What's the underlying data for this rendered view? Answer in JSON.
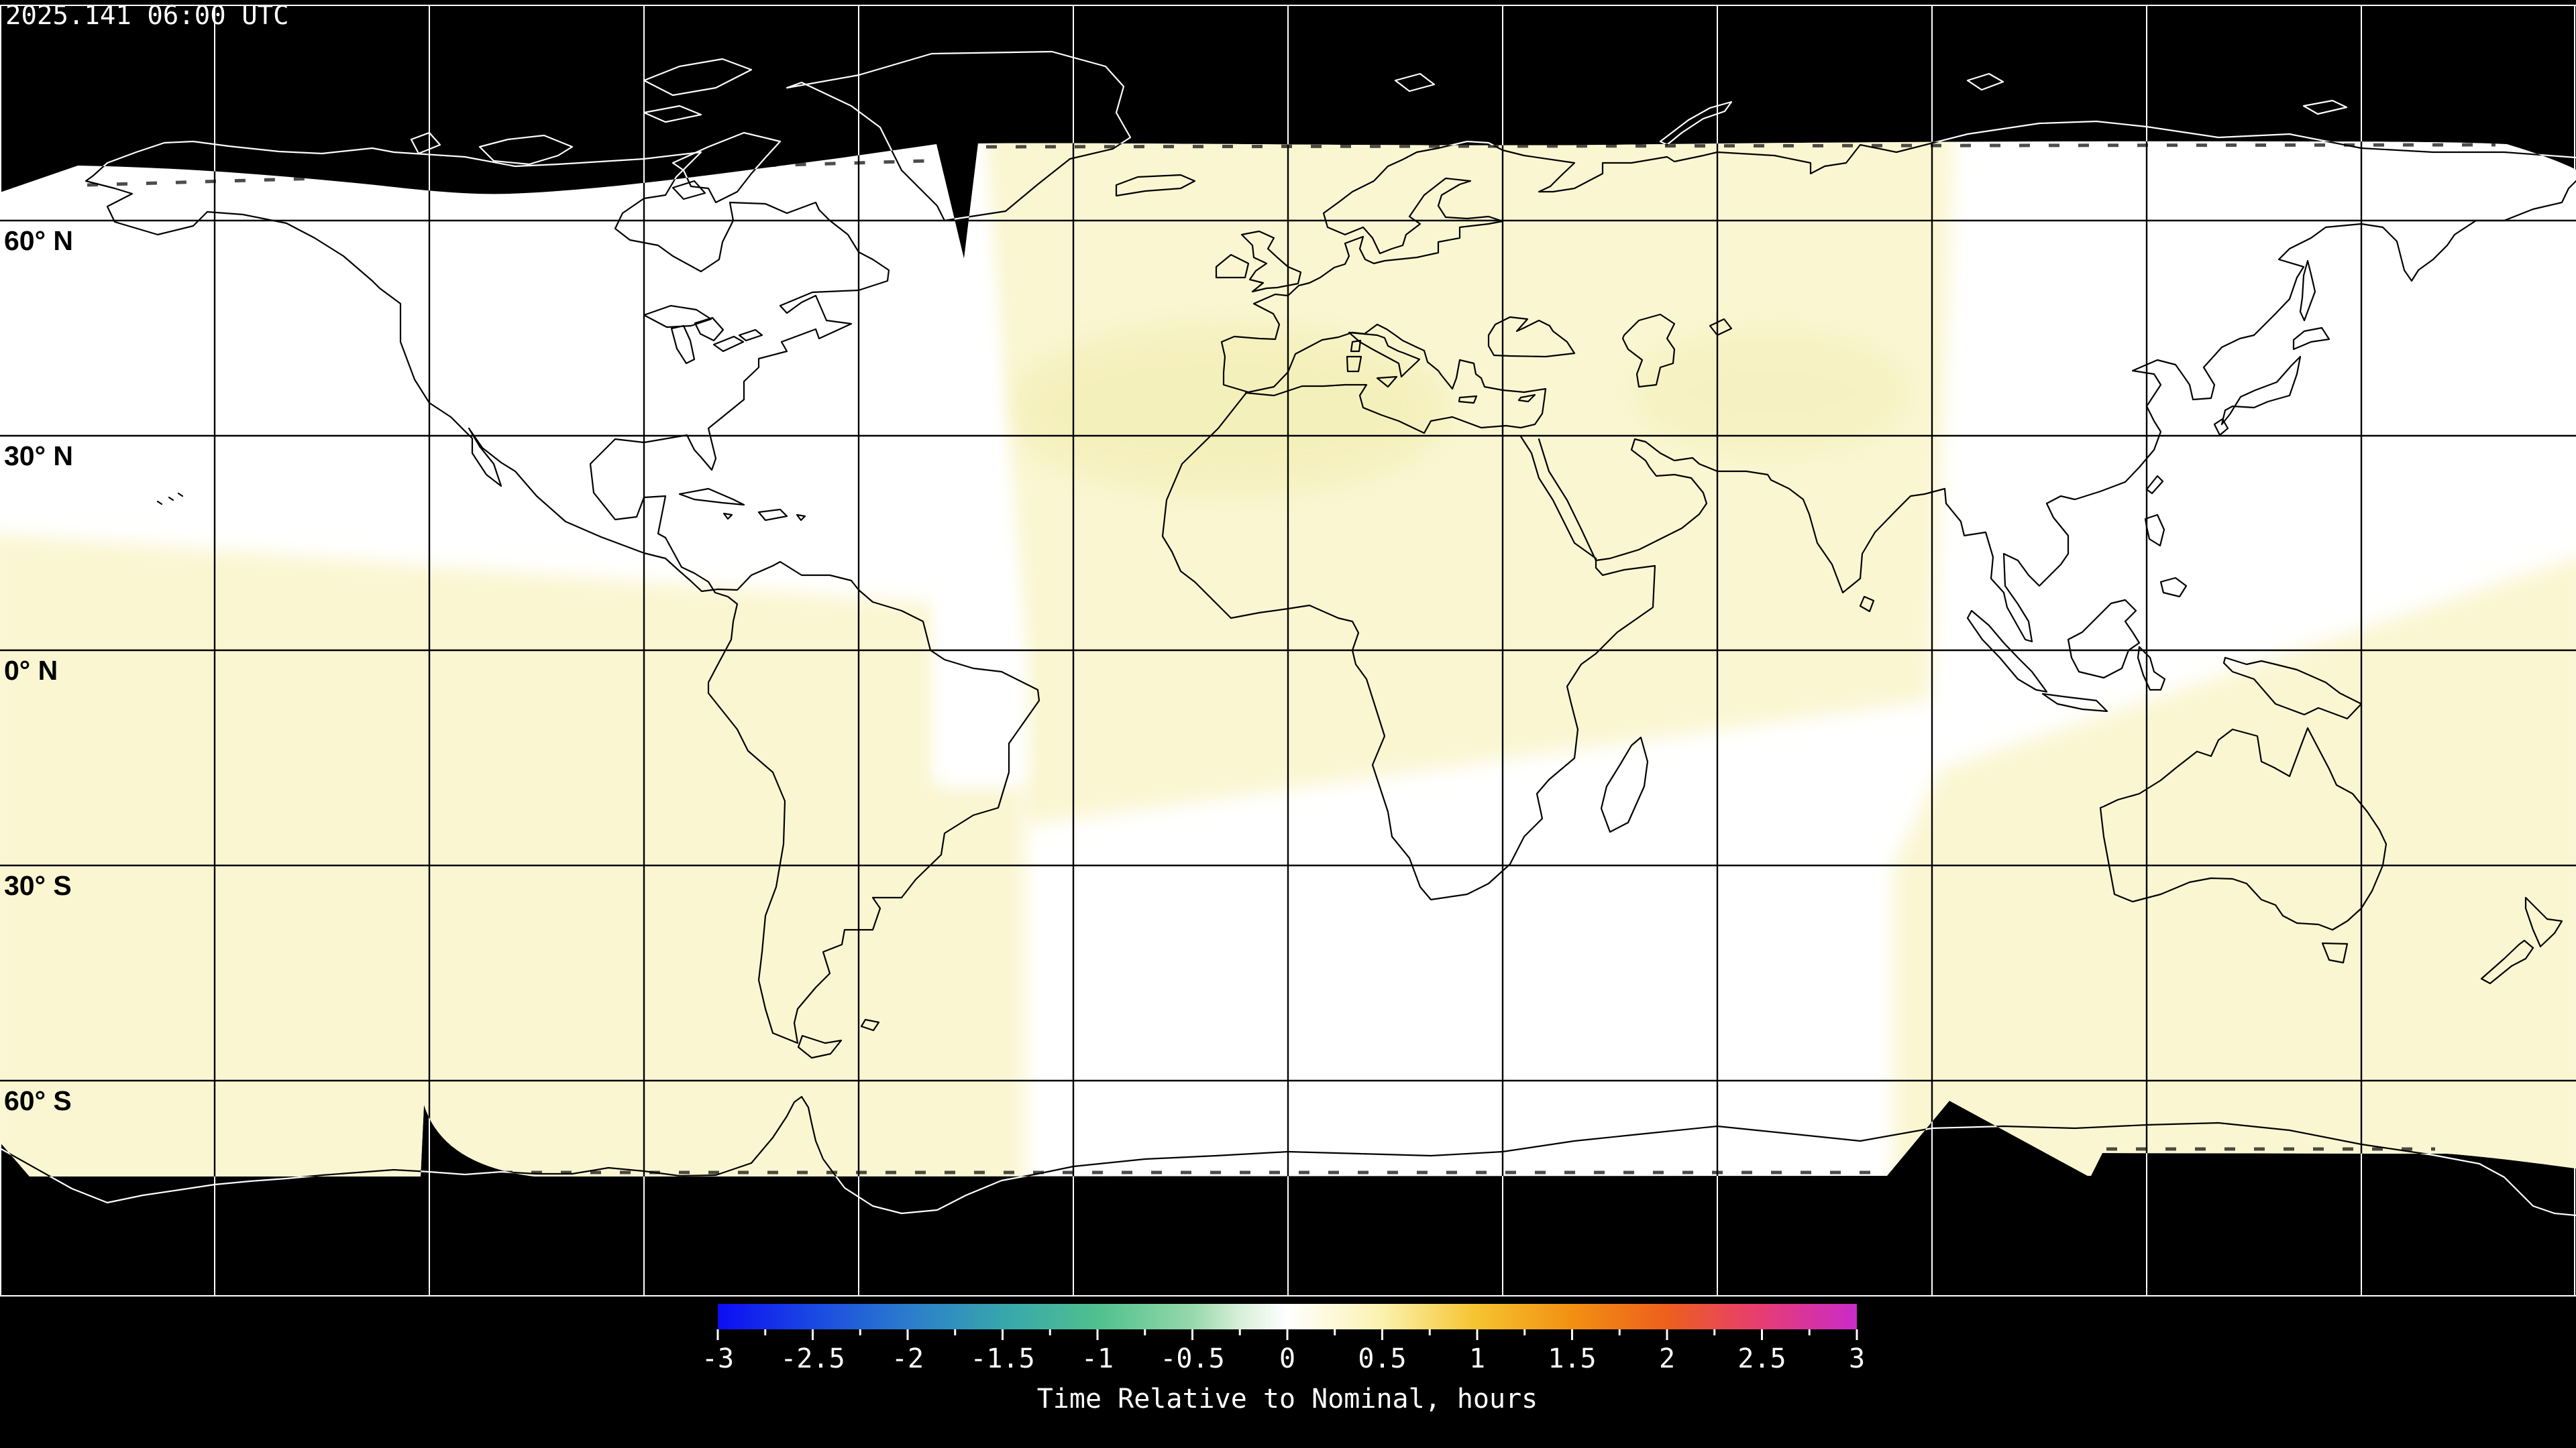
{
  "header": {
    "timestamp": "2025.141 06:00 UTC"
  },
  "map": {
    "latitude_labels": [
      "60° N",
      "30° N",
      "0° N",
      "30° S",
      "60° S"
    ],
    "grid_lon_step_deg": 30,
    "grid_lat_step_deg": 30,
    "background_color": "#000000",
    "nominal_region_color": "#ffffff",
    "late_region_color": "#faf6d2",
    "later_patch_color": "#f3eeb4",
    "coastline_on_data_color": "#000000",
    "coastline_on_void_color": "#ffffff"
  },
  "colorbar": {
    "label": "Time Relative to Nominal, hours",
    "min_hours": -3,
    "max_hours": 3,
    "minor_tick_step": 0.25,
    "major_tick_step": 0.5,
    "tick_labels": [
      "-3",
      "-2.5",
      "-2",
      "-1.5",
      "-1",
      "-0.5",
      "0",
      "0.5",
      "1",
      "1.5",
      "2",
      "2.5",
      "3"
    ],
    "gradient_stops": [
      {
        "value": -3,
        "color": "#0d0df4"
      },
      {
        "value": -2.5,
        "color": "#1a48e2"
      },
      {
        "value": -2,
        "color": "#2b7ccc"
      },
      {
        "value": -1.5,
        "color": "#37a6ad"
      },
      {
        "value": -1,
        "color": "#4fc08e"
      },
      {
        "value": -0.5,
        "color": "#96d8ab"
      },
      {
        "value": -0.25,
        "color": "#d8efd8"
      },
      {
        "value": 0,
        "color": "#ffffff"
      },
      {
        "value": 0.25,
        "color": "#fdf9d8"
      },
      {
        "value": 0.5,
        "color": "#fbf2ae"
      },
      {
        "value": 1,
        "color": "#f6c32e"
      },
      {
        "value": 1.5,
        "color": "#f29012"
      },
      {
        "value": 2,
        "color": "#ed5f1d"
      },
      {
        "value": 2.5,
        "color": "#e63c74"
      },
      {
        "value": 3,
        "color": "#c92bc9"
      }
    ]
  }
}
